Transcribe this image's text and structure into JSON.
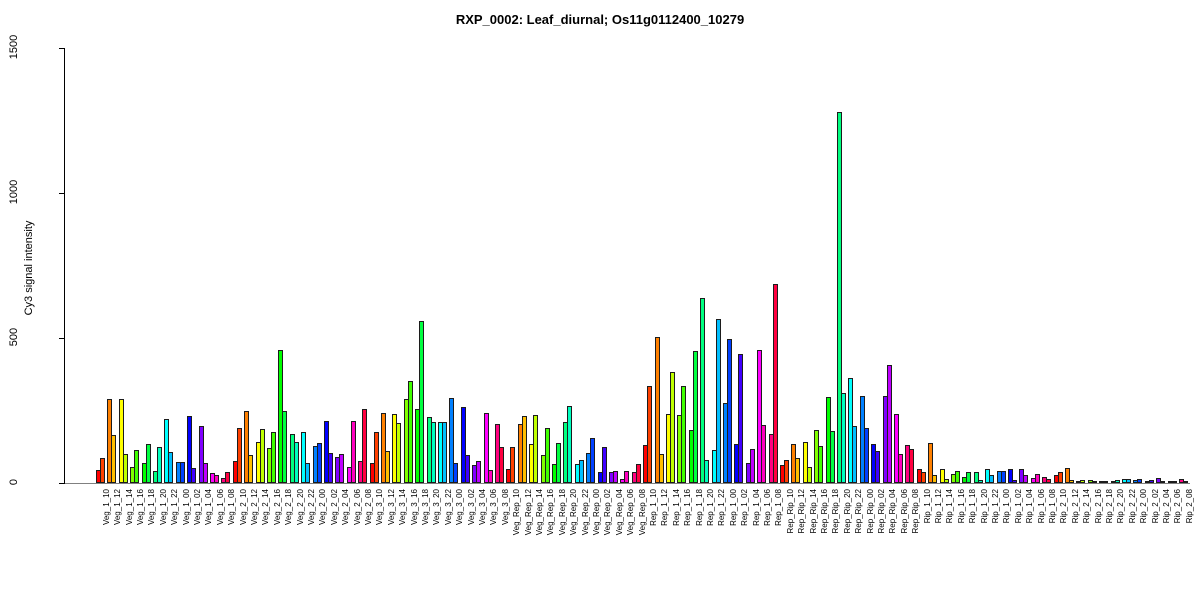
{
  "title": "RXP_0002: Leaf_diurnal; Os11g0112400_10279",
  "ylabel": "Cy3 signal intensity",
  "axis": {
    "tick_color": "#000000",
    "baseline_color": "#808080",
    "label_color": "#000000"
  },
  "chart_data": {
    "type": "bar",
    "title": "RXP_0002: Leaf_diurnal; Os11g0112400_10279",
    "xlabel": "",
    "ylabel": "Cy3 signal intensity",
    "ylim": [
      0,
      1500
    ],
    "yticks": [
      0,
      500,
      1000,
      1500
    ],
    "grid": false,
    "legend": "none",
    "bars_per_category": 2,
    "times": [
      "10",
      "12",
      "14",
      "16",
      "18",
      "20",
      "22",
      "00",
      "02",
      "04",
      "06",
      "08"
    ],
    "palette_pairs": [
      [
        "#FF0000",
        "#FF4000"
      ],
      [
        "#FF8000",
        "#FFBF00"
      ],
      [
        "#FFFF00",
        "#BFFF00"
      ],
      [
        "#80FF00",
        "#40FF00"
      ],
      [
        "#00FF00",
        "#00FF40"
      ],
      [
        "#00FF80",
        "#00FFBF"
      ],
      [
        "#00FFFF",
        "#00BFFF"
      ],
      [
        "#0080FF",
        "#0040FF"
      ],
      [
        "#0000FF",
        "#4000FF"
      ],
      [
        "#8000FF",
        "#BF00FF"
      ],
      [
        "#FF00FF",
        "#FF00BF"
      ],
      [
        "#FF0080",
        "#FF0040"
      ]
    ],
    "groups": [
      {
        "name": "Veg_1",
        "pairs": [
          [
            45,
            85
          ],
          [
            290,
            165
          ],
          [
            290,
            100
          ],
          [
            55,
            115
          ],
          [
            70,
            135
          ],
          [
            40,
            125
          ],
          [
            220,
            108
          ],
          [
            72,
            72
          ],
          [
            230,
            52
          ],
          [
            195,
            70
          ],
          [
            34,
            28
          ],
          [
            17,
            38
          ]
        ]
      },
      {
        "name": "Veg_2",
        "pairs": [
          [
            75,
            190
          ],
          [
            250,
            95
          ],
          [
            140,
            185
          ],
          [
            120,
            175
          ],
          [
            460,
            250
          ],
          [
            170,
            143
          ],
          [
            175,
            70
          ],
          [
            128,
            138
          ],
          [
            214,
            103
          ],
          [
            90,
            100
          ],
          [
            55,
            214
          ],
          [
            76,
            255
          ]
        ]
      },
      {
        "name": "Veg_3",
        "pairs": [
          [
            70,
            175
          ],
          [
            240,
            110
          ],
          [
            237,
            207
          ],
          [
            290,
            352
          ],
          [
            254,
            559
          ],
          [
            228,
            211
          ],
          [
            210,
            210
          ],
          [
            293,
            69
          ],
          [
            263,
            97
          ],
          [
            62,
            76
          ],
          [
            242,
            45
          ],
          [
            203,
            124
          ]
        ]
      },
      {
        "name": "Veg_Rep",
        "pairs": [
          [
            47,
            124
          ],
          [
            205,
            230
          ],
          [
            135,
            233
          ],
          [
            98,
            188
          ],
          [
            66,
            138
          ],
          [
            210,
            264
          ],
          [
            64,
            81
          ],
          [
            104,
            155
          ],
          [
            38,
            124
          ],
          [
            38,
            41
          ],
          [
            15,
            41
          ],
          [
            38,
            64
          ]
        ]
      },
      {
        "name": "Rep_1",
        "pairs": [
          [
            131,
            335
          ],
          [
            504,
            100
          ],
          [
            238,
            383
          ],
          [
            233,
            334
          ],
          [
            182,
            455
          ],
          [
            638,
            78
          ],
          [
            113,
            566
          ],
          [
            277,
            495
          ],
          [
            136,
            446
          ],
          [
            70,
            118
          ],
          [
            457,
            199
          ],
          [
            168,
            685
          ]
        ]
      },
      {
        "name": "Rep_Rip",
        "pairs": [
          [
            61,
            78
          ],
          [
            133,
            87
          ],
          [
            141,
            55
          ],
          [
            182,
            128
          ],
          [
            296,
            179
          ],
          [
            1280,
            311
          ],
          [
            363,
            196
          ],
          [
            300,
            190
          ],
          [
            133,
            110
          ],
          [
            300,
            406
          ],
          [
            239,
            101
          ],
          [
            130,
            118
          ]
        ]
      },
      {
        "name": "Rip_1",
        "pairs": [
          [
            47,
            38
          ],
          [
            138,
            28
          ],
          [
            47,
            15
          ],
          [
            32,
            41
          ],
          [
            21,
            38
          ],
          [
            38,
            11
          ],
          [
            47,
            28
          ],
          [
            41,
            41
          ],
          [
            47,
            11
          ],
          [
            47,
            28
          ],
          [
            18,
            32
          ],
          [
            21,
            15
          ]
        ]
      },
      {
        "name": "Rip_2",
        "pairs": [
          [
            28,
            38
          ],
          [
            53,
            11
          ],
          [
            8,
            12
          ],
          [
            10,
            8
          ],
          [
            8,
            8
          ],
          [
            8,
            10
          ],
          [
            15,
            15
          ],
          [
            12,
            15
          ],
          [
            8,
            12
          ],
          [
            18,
            8
          ],
          [
            8,
            8
          ],
          [
            15,
            8
          ]
        ]
      }
    ]
  }
}
